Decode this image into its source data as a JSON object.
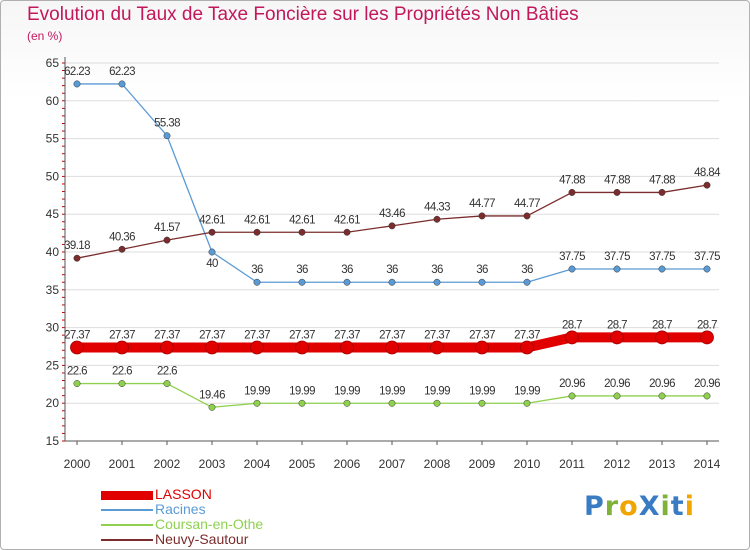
{
  "title": "Evolution du Taux de Taxe Foncière sur les Propriétés Non Bâties",
  "subtitle": "(en %)",
  "logo": {
    "text": "Proxiti",
    "letters": [
      {
        "char": "P",
        "color": "#3a7cc4"
      },
      {
        "char": "r",
        "color": "#7fb239"
      },
      {
        "char": "o",
        "color": "#f1a500"
      },
      {
        "char": "X",
        "color": "#3a7cc4"
      },
      {
        "char": "i",
        "color": "#7fb239"
      },
      {
        "char": "t",
        "color": "#3a7cc4"
      },
      {
        "char": "i",
        "color": "#f1a500"
      }
    ]
  },
  "colors": {
    "title": "#c2185b",
    "axis": "#555555",
    "grid": "#dddddd",
    "tick_marks": "#cc0000",
    "label_text": "#333333"
  },
  "chart_data": {
    "type": "line",
    "title": "Evolution du Taux de Taxe Foncière sur les Propriétés Non Bâties",
    "ylabel": "(en %)",
    "xlabel": "",
    "x": [
      2000,
      2001,
      2002,
      2003,
      2004,
      2005,
      2006,
      2007,
      2008,
      2009,
      2010,
      2011,
      2012,
      2013,
      2014
    ],
    "ylim": [
      15,
      65
    ],
    "yticks": [
      15,
      20,
      25,
      30,
      35,
      40,
      45,
      50,
      55,
      60,
      65
    ],
    "grid": "horizontal",
    "legend_position": "bottom-left",
    "series": [
      {
        "name": "LASSON",
        "color": "#e00000",
        "style": "thick",
        "values": [
          27.37,
          27.37,
          27.37,
          27.37,
          27.37,
          27.37,
          27.37,
          27.37,
          27.37,
          27.37,
          27.37,
          28.7,
          28.7,
          28.7,
          28.7
        ],
        "labels": [
          "27.37",
          "27.37",
          "27.37",
          "27.37",
          "27.37",
          "27.37",
          "27.37",
          "27.37",
          "27.37",
          "27.37",
          "27.37",
          "28.7",
          "28.7",
          "28.7",
          "28.7"
        ]
      },
      {
        "name": "Racines",
        "color": "#5b9bd5",
        "style": "thin",
        "values": [
          62.23,
          62.23,
          55.38,
          40,
          36,
          36,
          36,
          36,
          36,
          36,
          36,
          37.75,
          37.75,
          37.75,
          37.75
        ],
        "labels": [
          "62.23",
          "62.23",
          "55.38",
          "40",
          "36",
          "36",
          "36",
          "36",
          "36",
          "36",
          "36",
          "37.75",
          "37.75",
          "37.75",
          "37.75"
        ]
      },
      {
        "name": "Coursan-en-Othe",
        "color": "#8fd14f",
        "style": "thin",
        "values": [
          22.6,
          22.6,
          22.6,
          19.46,
          19.99,
          19.99,
          19.99,
          19.99,
          19.99,
          19.99,
          19.99,
          20.96,
          20.96,
          20.96,
          20.96
        ],
        "labels": [
          "22.6",
          "22.6",
          "22.6",
          "19.46",
          "19.99",
          "19.99",
          "19.99",
          "19.99",
          "19.99",
          "19.99",
          "19.99",
          "20.96",
          "20.96",
          "20.96",
          "20.96"
        ]
      },
      {
        "name": "Neuvy-Sautour",
        "color": "#7b2c2c",
        "style": "thin",
        "values": [
          39.18,
          40.36,
          41.57,
          42.61,
          42.61,
          42.61,
          42.61,
          43.46,
          44.33,
          44.77,
          44.77,
          47.88,
          47.88,
          47.88,
          48.84
        ],
        "labels": [
          "39.18",
          "40.36",
          "41.57",
          "42.61",
          "42.61",
          "42.61",
          "42.61",
          "43.46",
          "44.33",
          "44.77",
          "44.77",
          "47.88",
          "47.88",
          "47.88",
          "48.84"
        ]
      }
    ]
  }
}
